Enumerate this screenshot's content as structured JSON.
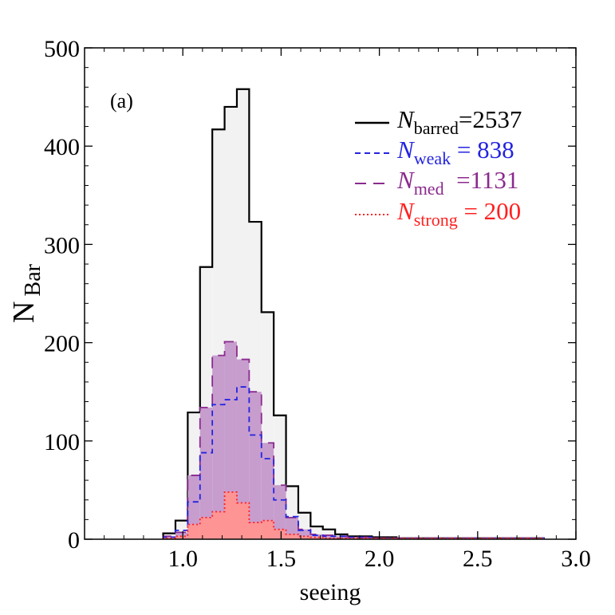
{
  "chart_data": {
    "type": "histogram",
    "panel_label": "(a)",
    "xlabel": "seeing",
    "ylabel": "N",
    "ylabel_sub": "Bar",
    "xlim": [
      0.5,
      3.0
    ],
    "ylim": [
      0,
      500
    ],
    "xticks": [
      "1.0",
      "1.5",
      "2.0",
      "2.5",
      "3.0"
    ],
    "xtick_values": [
      1.0,
      1.5,
      2.0,
      2.5,
      3.0
    ],
    "yticks": [
      "0",
      "100",
      "200",
      "300",
      "400",
      "500"
    ],
    "ytick_values": [
      0,
      100,
      200,
      300,
      400,
      500
    ],
    "bin_edges": [
      0.9,
      0.9625,
      1.025,
      1.0875,
      1.15,
      1.2125,
      1.275,
      1.3375,
      1.4,
      1.4625,
      1.525,
      1.5875,
      1.65,
      1.7125,
      1.775,
      1.8375,
      1.9,
      1.9625,
      2.025,
      2.0875,
      2.15,
      2.2125,
      2.275,
      2.3375,
      2.4,
      2.4625,
      2.525,
      2.5875,
      2.65,
      2.7125,
      2.775,
      2.8375
    ],
    "series": [
      {
        "key": "barred",
        "legend_main": "N",
        "legend_sub": "barred",
        "legend_value": "=2537",
        "color": "#000000",
        "fill": "#f2f2f2",
        "dash": "",
        "values": [
          6,
          19,
          129,
          277,
          417,
          440,
          458,
          323,
          231,
          126,
          54,
          27,
          13,
          10,
          5,
          3,
          3,
          2,
          2,
          1,
          1,
          1,
          1,
          1,
          1,
          1,
          1,
          1,
          1,
          1,
          1
        ]
      },
      {
        "key": "med",
        "legend_main": "N",
        "legend_sub": "med",
        "legend_value": "  =1131",
        "color": "#8b2a8e",
        "fill": "#c79dce",
        "dash": "14,9",
        "values": [
          3,
          7,
          65,
          134,
          187,
          201,
          183,
          150,
          98,
          55,
          22,
          10,
          5,
          4,
          3,
          2,
          2,
          1,
          1,
          1,
          1,
          1,
          1,
          1,
          1,
          1,
          1,
          1,
          1,
          1,
          1
        ]
      },
      {
        "key": "weak",
        "legend_main": "N",
        "legend_sub": "weak",
        "legend_value": " = 838",
        "color": "#2424e0",
        "fill": "none",
        "dash": "7,5",
        "values": [
          2,
          9,
          38,
          88,
          137,
          142,
          155,
          106,
          82,
          40,
          23,
          9,
          4,
          3,
          3,
          2,
          2,
          1,
          1,
          1,
          1,
          1,
          1,
          1,
          1,
          1,
          1,
          1,
          1,
          1,
          1
        ]
      },
      {
        "key": "strong",
        "legend_main": "N",
        "legend_sub": "strong",
        "legend_value": " = 200",
        "color": "#ff2020",
        "fill": "#ff9494",
        "dash": "2,3",
        "values": [
          1,
          3,
          15,
          22,
          28,
          48,
          37,
          17,
          19,
          10,
          5,
          3,
          2,
          1,
          1,
          1,
          1,
          1,
          1,
          1,
          1,
          1,
          1,
          1,
          1,
          1,
          1,
          1,
          1,
          1,
          1
        ]
      }
    ],
    "legend_order": [
      "barred",
      "weak",
      "med",
      "strong"
    ],
    "legend_colors": {
      "barred": "#000000",
      "weak": "#2424e0",
      "med": "#8b2a8e",
      "strong": "#ff2020"
    },
    "legend_position": "top-right",
    "grid": false
  }
}
